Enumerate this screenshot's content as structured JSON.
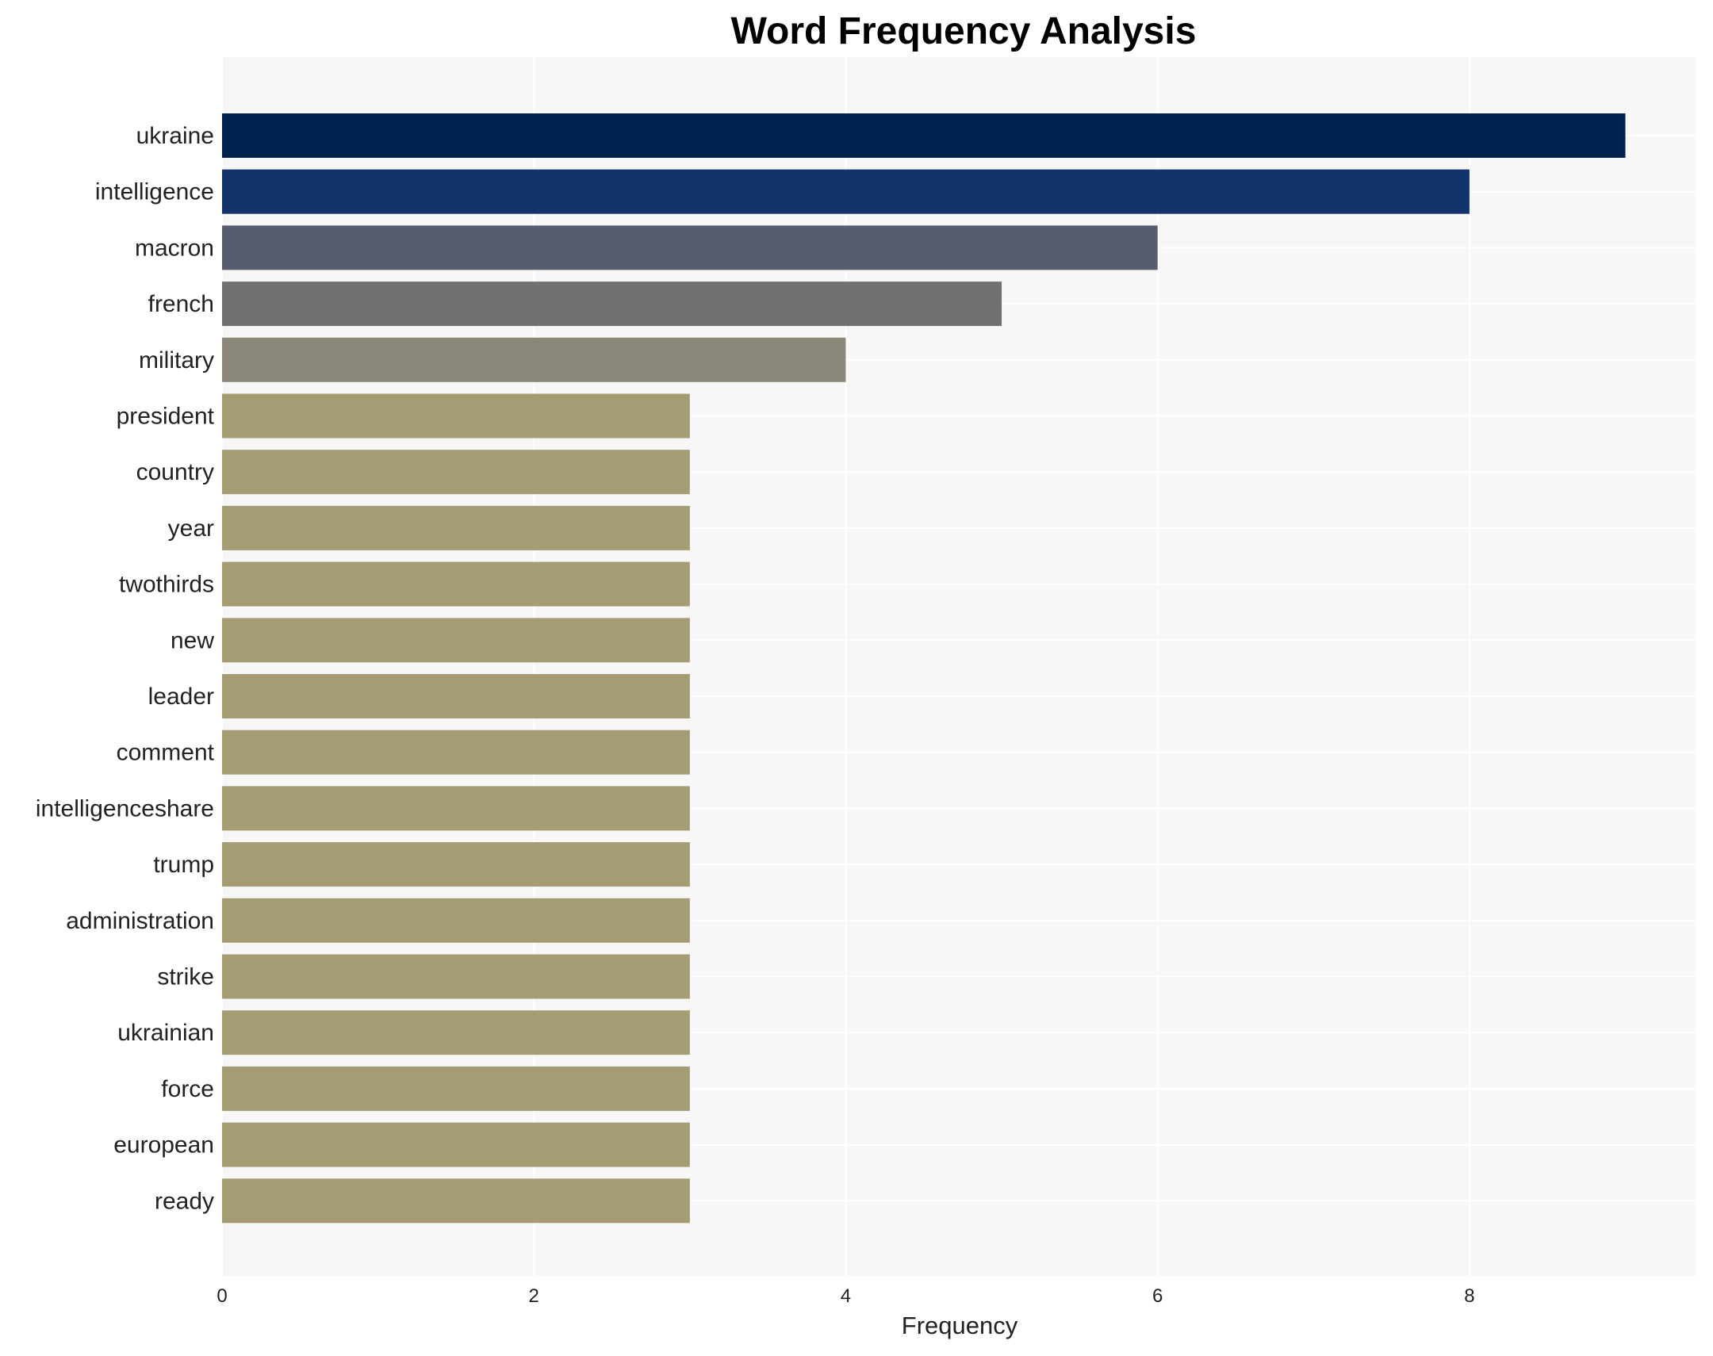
{
  "chart_data": {
    "type": "bar",
    "orientation": "horizontal",
    "title": "Word Frequency Analysis",
    "xlabel": "Frequency",
    "ylabel": "",
    "xlim": [
      0,
      9.45
    ],
    "xticks": [
      0,
      2,
      4,
      6,
      8
    ],
    "grid": true,
    "categories": [
      "ukraine",
      "intelligence",
      "macron",
      "french",
      "military",
      "president",
      "country",
      "year",
      "twothirds",
      "new",
      "leader",
      "comment",
      "intelligenceshare",
      "trump",
      "administration",
      "strike",
      "ukrainian",
      "force",
      "european",
      "ready"
    ],
    "values": [
      9,
      8,
      6,
      5,
      4,
      3,
      3,
      3,
      3,
      3,
      3,
      3,
      3,
      3,
      3,
      3,
      3,
      3,
      3,
      3
    ],
    "colors": [
      "#00224e",
      "#12336b",
      "#575d6d",
      "#707173",
      "#8a8678",
      "#a59c74",
      "#a59c74",
      "#a59c74",
      "#a59c74",
      "#a59c74",
      "#a59c74",
      "#a59c74",
      "#a59c74",
      "#a59c74",
      "#a59c74",
      "#a59c74",
      "#a59c74",
      "#a59c74",
      "#a59c74",
      "#a59c74"
    ]
  }
}
